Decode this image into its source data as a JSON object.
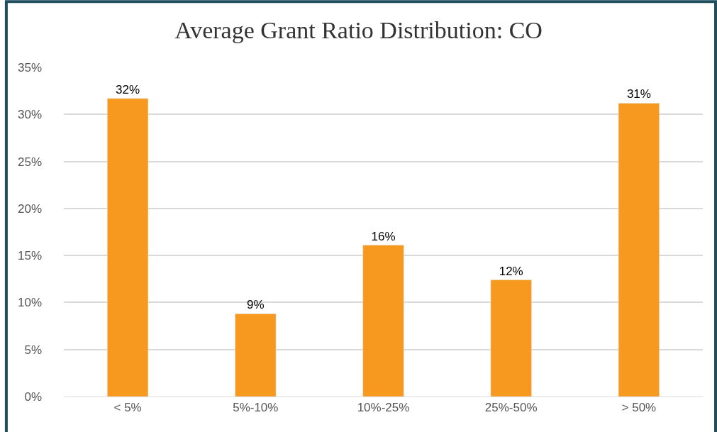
{
  "chart_data": {
    "type": "bar",
    "title": "Average Grant Ratio Distribution: CO",
    "categories": [
      "< 5%",
      "5%-10%",
      "10%-25%",
      "25%-50%",
      "> 50%"
    ],
    "values": [
      31.7,
      8.8,
      16.1,
      12.4,
      31.2
    ],
    "value_labels": [
      "32%",
      "9%",
      "16%",
      "12%",
      "31%"
    ],
    "color": "#f7991f",
    "ylim": [
      0,
      35
    ],
    "yticks": [
      {
        "value": 0,
        "label": "0%"
      },
      {
        "value": 5,
        "label": "5%"
      },
      {
        "value": 10,
        "label": "10%"
      },
      {
        "value": 15,
        "label": "15%"
      },
      {
        "value": 20,
        "label": "20%"
      },
      {
        "value": 25,
        "label": "25%"
      },
      {
        "value": 30,
        "label": "30%"
      },
      {
        "value": 35,
        "label": "35%"
      }
    ],
    "grid": "y",
    "legend": false
  }
}
